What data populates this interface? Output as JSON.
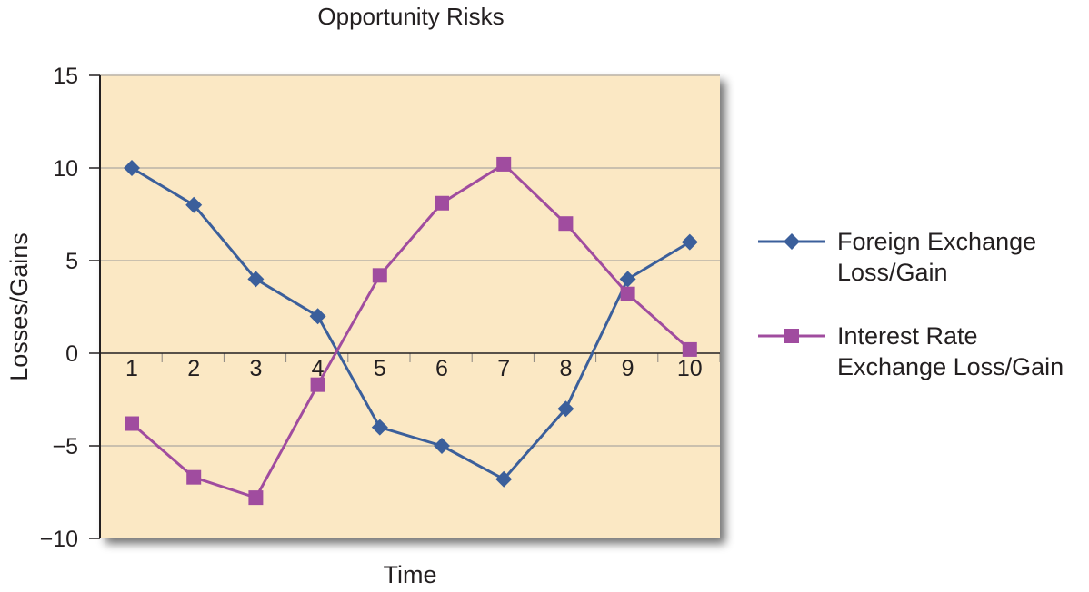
{
  "chart_data": {
    "type": "line",
    "title": "Opportunity Risks",
    "xlabel": "Time",
    "ylabel": "Losses/Gains",
    "categories": [
      "1",
      "2",
      "3",
      "4",
      "5",
      "6",
      "7",
      "8",
      "9",
      "10"
    ],
    "ylim": [
      -10,
      15
    ],
    "yticks": [
      15,
      10,
      5,
      0,
      -5,
      -10
    ],
    "ytick_labels": [
      "15",
      "10",
      "5",
      "0",
      "−5",
      "−10"
    ],
    "grid": true,
    "legend_position": "right",
    "series": [
      {
        "name": "Foreign Exchange Loss/Gain",
        "name_lines": [
          "Foreign Exchange",
          "Loss/Gain"
        ],
        "marker": "diamond",
        "color": "#3b5f9b",
        "values": [
          10,
          8,
          4,
          2,
          -4,
          -5,
          -6.8,
          -3,
          4,
          6
        ]
      },
      {
        "name": "Interest Rate Exchange Loss/Gain",
        "name_lines": [
          "Interest Rate",
          "Exchange Loss/Gain"
        ],
        "marker": "square",
        "color": "#a04c9f",
        "values": [
          -3.8,
          -6.7,
          -7.8,
          -1.7,
          4.2,
          8.1,
          10.2,
          7,
          3.2,
          0.2
        ]
      }
    ],
    "colors": {
      "plot_background": "#fbe8c4",
      "gridline": "#b9b2a6",
      "axis": "#231f20",
      "shadow": "#7a7a7a"
    }
  }
}
